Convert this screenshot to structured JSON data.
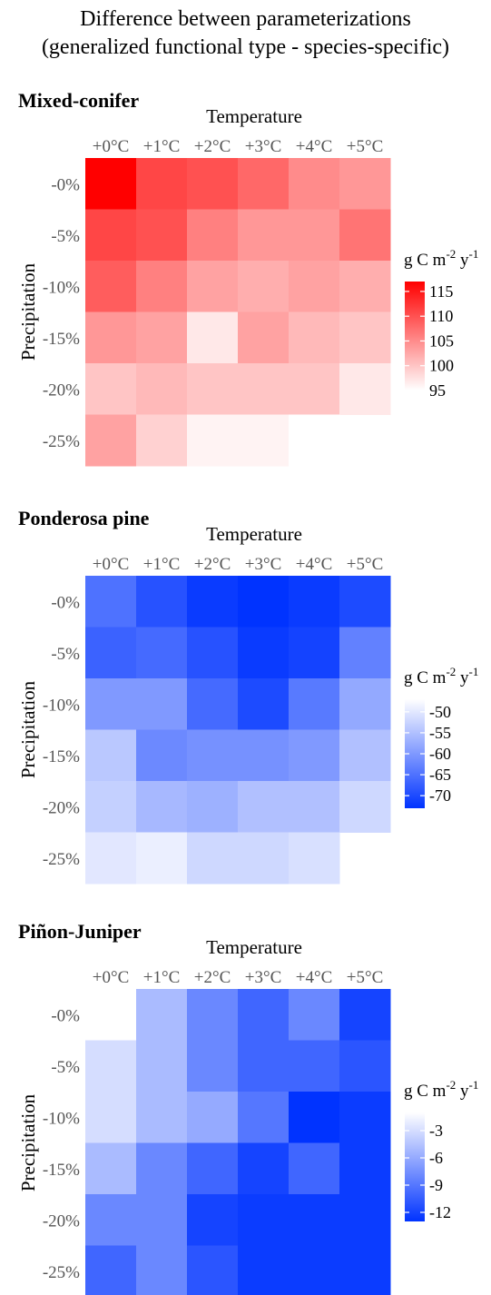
{
  "figure": {
    "title_line1": "Difference between parameterizations",
    "title_line2": "(generalized functional type - species-specific)"
  },
  "chart_data": [
    {
      "type": "heatmap",
      "title": "Mixed-conifer",
      "xlabel": "Temperature",
      "ylabel": "Precipitation",
      "x_ticks": [
        "+0°C",
        "+1°C",
        "+2°C",
        "+3°C",
        "+4°C",
        "+5°C"
      ],
      "y_ticks": [
        "-0%",
        "-5%",
        "-10%",
        "-15%",
        "-20%",
        "-25%"
      ],
      "legend_title": "g C m-2 y-1",
      "legend_breaks": [
        115,
        110,
        105,
        100,
        95
      ],
      "color_low": "#ffffff",
      "color_high": "#ff0000",
      "value_range": [
        95,
        117
      ],
      "values": [
        [
          117,
          111,
          110,
          108,
          105,
          104
        ],
        [
          111,
          110,
          106,
          104,
          104,
          107
        ],
        [
          109,
          106,
          103,
          102,
          103,
          102
        ],
        [
          104,
          103,
          97,
          103,
          101,
          100
        ],
        [
          100,
          101,
          100,
          100,
          100,
          97
        ],
        [
          103,
          99,
          96,
          96,
          95,
          null
        ]
      ]
    },
    {
      "type": "heatmap",
      "title": "Ponderosa pine",
      "xlabel": "Temperature",
      "ylabel": "Precipitation",
      "x_ticks": [
        "+0°C",
        "+1°C",
        "+2°C",
        "+3°C",
        "+4°C",
        "+5°C"
      ],
      "y_ticks": [
        "-0%",
        "-5%",
        "-10%",
        "-15%",
        "-20%",
        "-25%"
      ],
      "legend_title": "g C m-2 y-1",
      "legend_breaks": [
        -50,
        -55,
        -60,
        -65,
        -70
      ],
      "color_low": "#0033ff",
      "color_high": "#ffffff",
      "value_range": [
        -73,
        -47
      ],
      "values": [
        [
          -65,
          -69,
          -72,
          -73,
          -72,
          -70
        ],
        [
          -67,
          -66,
          -69,
          -72,
          -71,
          -63
        ],
        [
          -60,
          -60,
          -66,
          -70,
          -64,
          -58
        ],
        [
          -54,
          -62,
          -61,
          -61,
          -60,
          -55
        ],
        [
          -53,
          -56,
          -57,
          -55,
          -55,
          -52
        ],
        [
          -50,
          -49,
          -52,
          -52,
          -51,
          null
        ]
      ]
    },
    {
      "type": "heatmap",
      "title": "Piñon-Juniper",
      "xlabel": "Temperature",
      "ylabel": "Precipitation",
      "x_ticks": [
        "+0°C",
        "+1°C",
        "+2°C",
        "+3°C",
        "+4°C",
        "+5°C"
      ],
      "y_ticks": [
        "-0%",
        "-5%",
        "-10%",
        "-15%",
        "-20%",
        "-25%"
      ],
      "legend_title": "g C m-2 y-1",
      "legend_breaks": [
        -3,
        -6,
        -9,
        -12
      ],
      "color_low": "#0033ff",
      "color_high": "#ffffff",
      "value_range": [
        -13,
        -1
      ],
      "values": [
        [
          null,
          -5,
          -8,
          -10,
          -8,
          -12
        ],
        [
          -3,
          -5,
          -8,
          -10,
          -10,
          -11
        ],
        [
          -3,
          -5,
          -6,
          -9,
          -13,
          -12.5
        ],
        [
          -5,
          -8,
          -10,
          -12,
          -10,
          -12.5
        ],
        [
          -8,
          -8,
          -12,
          -12.5,
          -12.5,
          -12.5
        ],
        [
          -10,
          -8,
          -11,
          -12.5,
          -12.5,
          -12.5
        ]
      ]
    }
  ]
}
